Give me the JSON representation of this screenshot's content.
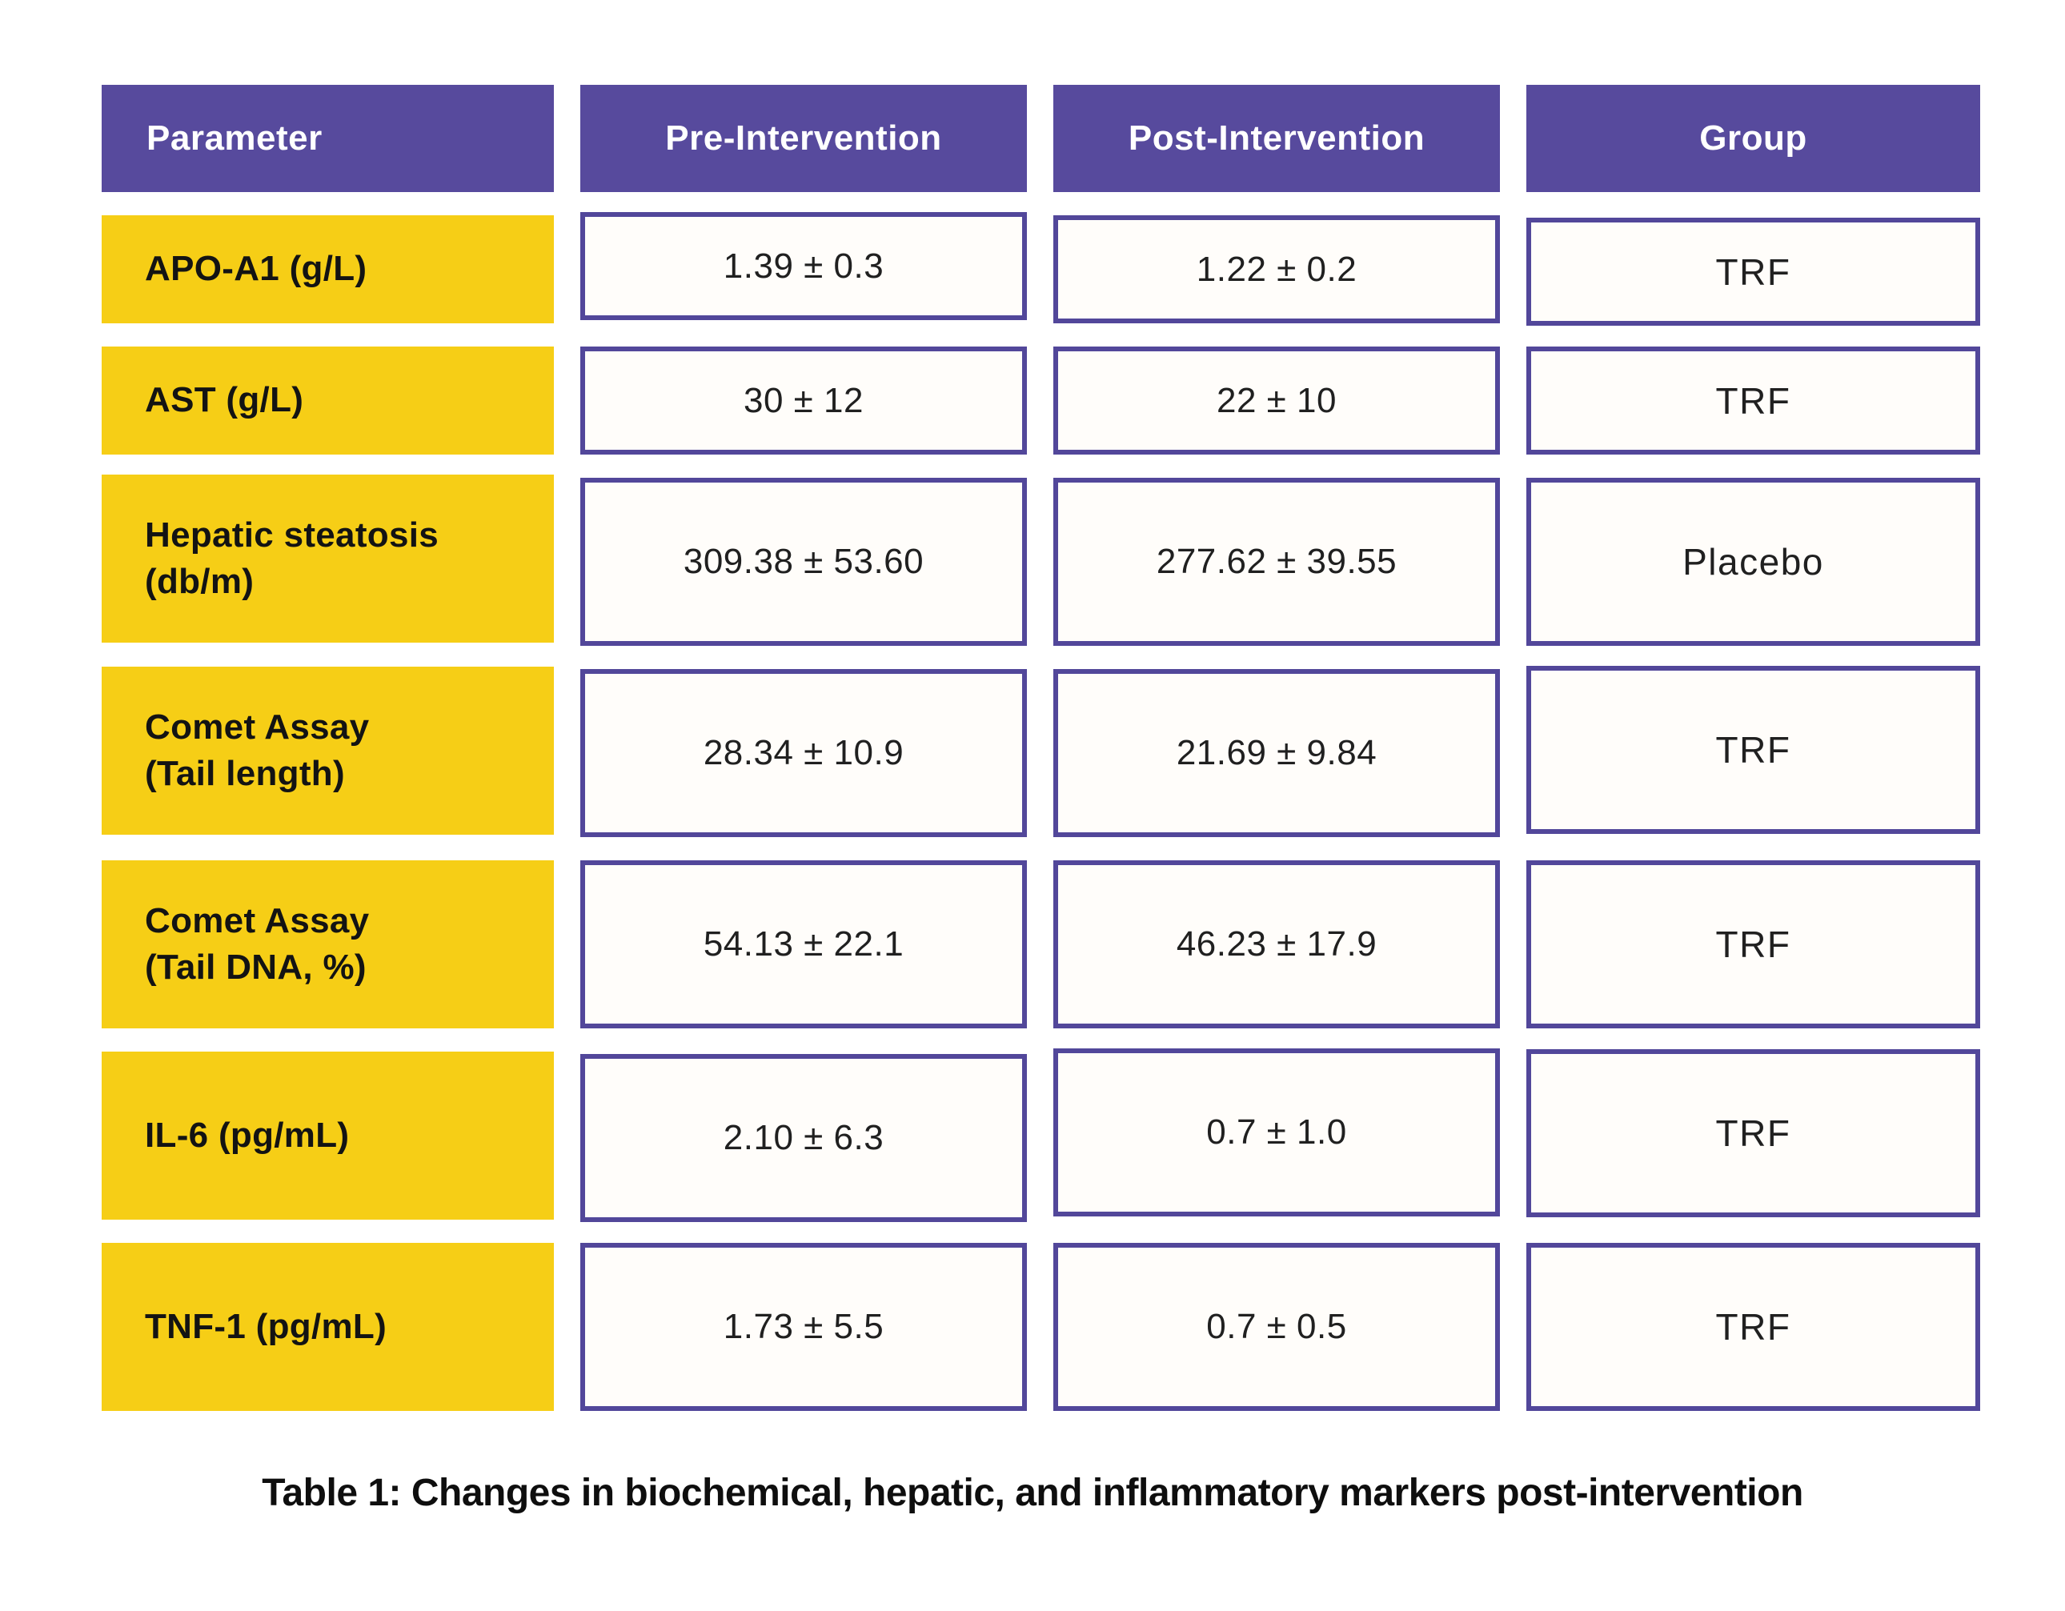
{
  "colors": {
    "header_bg": "#574a9d",
    "header_text": "#ffffff",
    "label_bg": "#f6ce16",
    "label_text": "#131313",
    "cell_bg": "#fffdfa",
    "cell_border": "#52479a",
    "value_text": "#202020",
    "caption_text": "#0e0e0e"
  },
  "table": {
    "headers": [
      "Parameter",
      "Pre-Intervention",
      "Post-Intervention",
      "Group"
    ],
    "rows": [
      {
        "param_lines": [
          "APO-A1 (g/L)"
        ],
        "pre": "1.39 ± 0.3",
        "post": "1.22 ± 0.2",
        "group": "TRF"
      },
      {
        "param_lines": [
          "AST (g/L)"
        ],
        "pre": "30 ± 12",
        "post": "22 ± 10",
        "group": "TRF"
      },
      {
        "param_lines": [
          "Hepatic steatosis",
          "(db/m)"
        ],
        "pre": "309.38 ± 53.60",
        "post": "277.62 ± 39.55",
        "group": "Placebo"
      },
      {
        "param_lines": [
          "Comet Assay",
          "(Tail length)"
        ],
        "pre": "28.34 ± 10.9",
        "post": "21.69 ± 9.84",
        "group": "TRF"
      },
      {
        "param_lines": [
          "Comet Assay",
          "(Tail DNA, %)"
        ],
        "pre": "54.13 ± 22.1",
        "post": "46.23 ± 17.9",
        "group": "TRF"
      },
      {
        "param_lines": [
          "IL-6 (pg/mL)"
        ],
        "pre": "2.10 ± 6.3",
        "post": "0.7 ± 1.0",
        "group": "TRF"
      },
      {
        "param_lines": [
          "TNF-1 (pg/mL)"
        ],
        "pre": "1.73 ± 5.5",
        "post": "0.7 ± 0.5",
        "group": "TRF"
      }
    ],
    "caption": "Table 1: Changes in biochemical, hepatic, and inflammatory markers post-intervention"
  },
  "chart_data": {
    "type": "table",
    "title": "Table 1: Changes in biochemical, hepatic, and inflammatory markers post-intervention",
    "columns": [
      "Parameter",
      "Pre-Intervention",
      "Post-Intervention",
      "Group"
    ],
    "rows": [
      [
        "APO-A1 (g/L)",
        "1.39 ± 0.3",
        "1.22 ± 0.2",
        "TRF"
      ],
      [
        "AST (g/L)",
        "30 ± 12",
        "22 ± 10",
        "TRF"
      ],
      [
        "Hepatic steatosis (db/m)",
        "309.38 ± 53.60",
        "277.62 ± 39.55",
        "Placebo"
      ],
      [
        "Comet Assay (Tail length)",
        "28.34 ± 10.9",
        "21.69 ± 9.84",
        "TRF"
      ],
      [
        "Comet Assay (Tail DNA, %)",
        "54.13 ± 22.1",
        "46.23 ± 17.9",
        "TRF"
      ],
      [
        "IL-6 (pg/mL)",
        "2.10 ± 6.3",
        "0.7 ± 1.0",
        "TRF"
      ],
      [
        "TNF-1 (pg/mL)",
        "1.73 ± 5.5",
        "0.7 ± 0.5",
        "TRF"
      ]
    ]
  }
}
